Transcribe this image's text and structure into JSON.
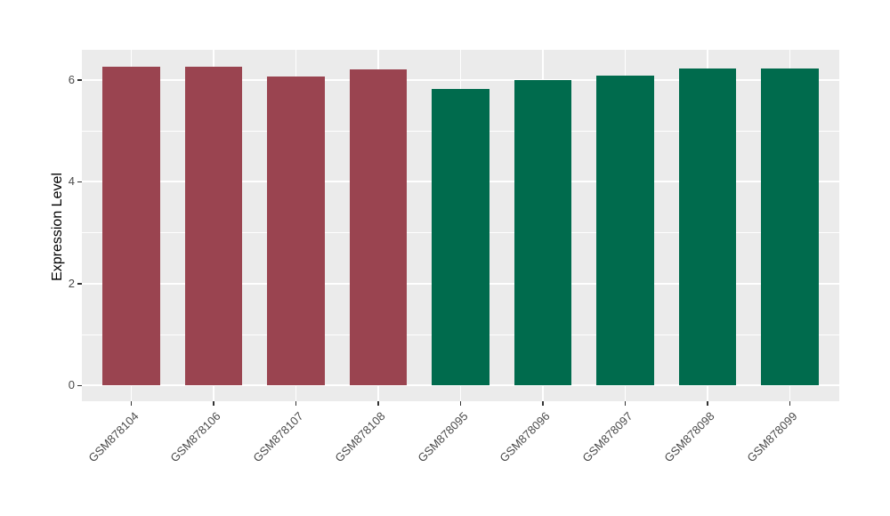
{
  "chart_data": {
    "type": "bar",
    "title": "",
    "xlabel": "",
    "ylabel": "Expression Level",
    "categories": [
      "GSM878104",
      "GSM878106",
      "GSM878107",
      "GSM878108",
      "GSM878095",
      "GSM878096",
      "GSM878097",
      "GSM878098",
      "GSM878099"
    ],
    "values": [
      6.26,
      6.26,
      6.07,
      6.21,
      5.83,
      5.99,
      6.09,
      6.23,
      6.23
    ],
    "groups": [
      "group1",
      "group1",
      "group1",
      "group1",
      "group2",
      "group2",
      "group2",
      "group2",
      "group2"
    ],
    "group_colors": {
      "group1": "#9A4450",
      "group2": "#006B4D"
    },
    "bar_width_fraction": 0.7,
    "yticks": [
      0,
      2,
      4,
      6
    ],
    "ytick_labels": [
      "0",
      "2",
      "4",
      "6"
    ],
    "minor_ticks": [
      1,
      3,
      5
    ],
    "ylim": [
      -0.31,
      6.59
    ],
    "grid": true,
    "legend_position": "none",
    "panel_bg": "#EBEBEB",
    "grid_color": "#FFFFFF",
    "x_label_angle": 45
  }
}
